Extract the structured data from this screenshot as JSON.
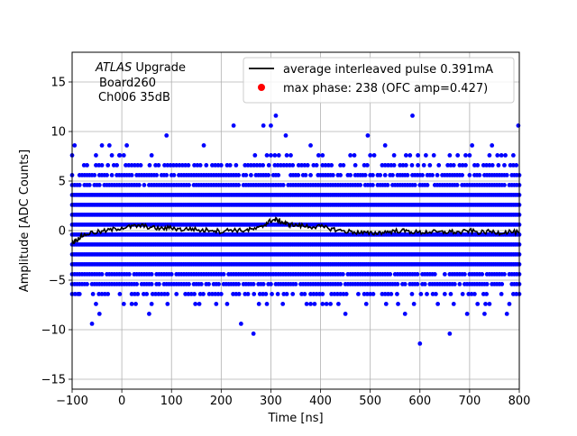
{
  "chart_data": {
    "type": "scatter",
    "title": "",
    "xlabel": "Time [ns]",
    "ylabel": "Amplitude [ADC Counts]",
    "xlim": [
      -100,
      800
    ],
    "ylim": [
      -16,
      18
    ],
    "grid": true,
    "legend_placement": "top-right",
    "x_ticks": [
      -100,
      0,
      100,
      200,
      300,
      400,
      500,
      600,
      700,
      800
    ],
    "x_tick_labels": [
      "−100",
      "0",
      "100",
      "200",
      "300",
      "400",
      "500",
      "600",
      "700",
      "800"
    ],
    "y_ticks": [
      -15,
      -10,
      -5,
      0,
      5,
      10,
      15
    ],
    "y_tick_labels": [
      "−15",
      "−10",
      "−5",
      "0",
      "5",
      "10",
      "15"
    ],
    "annotation": {
      "italic_part": "ATLAS",
      "rest": " Upgrade",
      "line2": "Board260",
      "line3": "Ch006 35dB"
    },
    "series": [
      {
        "name": "average interleaved pulse 0.391mA",
        "kind": "line",
        "color": "#000000",
        "x": [
          -100,
          -90,
          -80,
          -60,
          -40,
          -20,
          0,
          20,
          40,
          60,
          80,
          100,
          120,
          140,
          160,
          180,
          200,
          220,
          240,
          260,
          280,
          290,
          300,
          310,
          320,
          330,
          340,
          360,
          380,
          400,
          420,
          440,
          460,
          480,
          500,
          520,
          540,
          560,
          580,
          600,
          620,
          640,
          660,
          680,
          700,
          720,
          740,
          760,
          780,
          800
        ],
        "y": [
          -1.2,
          -0.9,
          -0.5,
          -0.2,
          -0.1,
          0.1,
          0.3,
          0.4,
          0.5,
          0.3,
          0.2,
          0.3,
          0.1,
          0.2,
          0.0,
          0.1,
          -0.1,
          0.1,
          0.0,
          0.1,
          0.3,
          0.7,
          1.0,
          1.1,
          0.9,
          0.7,
          0.6,
          0.5,
          0.4,
          0.4,
          0.2,
          0.0,
          -0.1,
          -0.2,
          -0.3,
          -0.2,
          -0.1,
          0.0,
          -0.1,
          -0.2,
          -0.1,
          -0.2,
          -0.1,
          -0.2,
          0.0,
          -0.2,
          -0.1,
          -0.2,
          -0.1,
          -0.2
        ]
      },
      {
        "name": "max phase: 238 (OFC amp=0.427)",
        "kind": "scatter",
        "color": "#0000ff",
        "legend_color": "#ff0000",
        "levels": [
          -11.4,
          -10.4,
          -9.4,
          -8.4,
          -7.4,
          -6.4,
          -5.4,
          -4.4,
          -3.4,
          -2.4,
          -1.4,
          -0.4,
          0.6,
          1.6,
          2.6,
          3.6,
          4.6,
          5.6,
          6.6,
          7.6,
          8.6,
          9.6,
          10.6,
          11.6
        ],
        "dense_levels": [
          -3.4,
          -2.4,
          -1.4,
          -0.4,
          0.6,
          1.6,
          2.6,
          3.6
        ],
        "outliers": [
          {
            "x": -95,
            "y": 8.6
          },
          {
            "x": -85,
            "y": -6.4
          },
          {
            "x": -60,
            "y": -9.4
          },
          {
            "x": -45,
            "y": -8.4
          },
          {
            "x": -40,
            "y": 8.6
          },
          {
            "x": -25,
            "y": 8.6
          },
          {
            "x": -5,
            "y": 7.6
          },
          {
            "x": 10,
            "y": 8.6
          },
          {
            "x": 55,
            "y": -8.4
          },
          {
            "x": 90,
            "y": 9.6
          },
          {
            "x": 165,
            "y": 8.6
          },
          {
            "x": 190,
            "y": -7.4
          },
          {
            "x": 225,
            "y": 10.6
          },
          {
            "x": 240,
            "y": -9.4
          },
          {
            "x": 265,
            "y": -10.4
          },
          {
            "x": 285,
            "y": 10.6
          },
          {
            "x": 300,
            "y": 10.6
          },
          {
            "x": 310,
            "y": 11.6
          },
          {
            "x": 330,
            "y": 9.6
          },
          {
            "x": 380,
            "y": 8.6
          },
          {
            "x": 450,
            "y": -8.4
          },
          {
            "x": 495,
            "y": 9.6
          },
          {
            "x": 530,
            "y": 8.6
          },
          {
            "x": 570,
            "y": -8.4
          },
          {
            "x": 585,
            "y": 11.6
          },
          {
            "x": 600,
            "y": -11.4
          },
          {
            "x": 660,
            "y": -10.4
          },
          {
            "x": 695,
            "y": -8.4
          },
          {
            "x": 705,
            "y": 8.6
          },
          {
            "x": 730,
            "y": -8.4
          },
          {
            "x": 745,
            "y": 8.6
          },
          {
            "x": 775,
            "y": -8.4
          },
          {
            "x": 798,
            "y": 10.6
          }
        ]
      }
    ]
  }
}
